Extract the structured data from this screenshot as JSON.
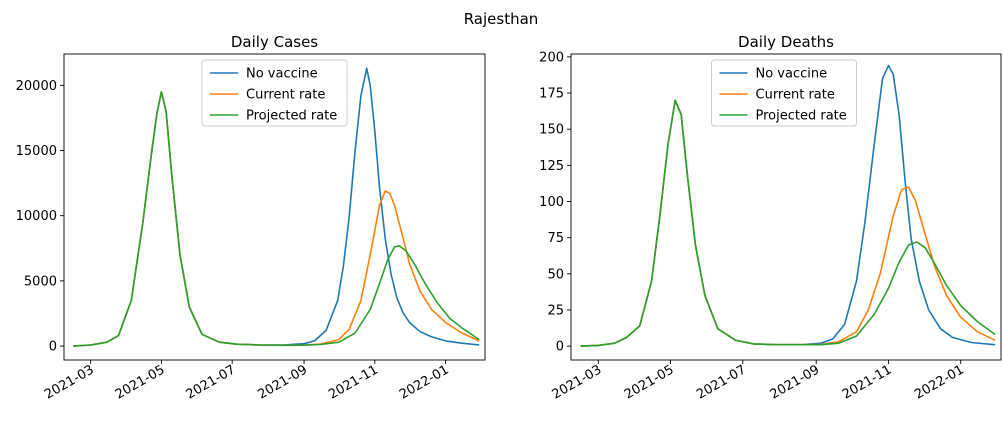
{
  "figure": {
    "suptitle": "Rajesthan"
  },
  "chart_data": [
    {
      "type": "line",
      "title": "Daily Cases",
      "xlabel": "",
      "ylabel": "",
      "xlim": [
        "2021-02-06",
        "2022-02-04"
      ],
      "ylim": [
        -1068,
        22400
      ],
      "yticks": [
        0,
        5000,
        10000,
        15000,
        20000
      ],
      "ytick_labels": [
        "0",
        "5000",
        "10000",
        "15000",
        "20000"
      ],
      "xticks": [
        "2021-03-01",
        "2021-05-01",
        "2021-07-01",
        "2021-09-01",
        "2021-11-01",
        "2022-01-01"
      ],
      "xtick_labels": [
        "2021-03",
        "2021-05",
        "2021-07",
        "2021-09",
        "2021-11",
        "2022-01"
      ],
      "legend": {
        "placement": "upper center",
        "entries": [
          "No vaccine",
          "Current rate",
          "Projected rate"
        ]
      },
      "series": [
        {
          "name": "No vaccine",
          "color": "#1f77b4",
          "x": [
            "2021-02-14",
            "2021-03-01",
            "2021-03-15",
            "2021-03-25",
            "2021-04-05",
            "2021-04-15",
            "2021-04-22",
            "2021-04-27",
            "2021-05-01",
            "2021-05-05",
            "2021-05-10",
            "2021-05-17",
            "2021-05-25",
            "2021-06-05",
            "2021-06-20",
            "2021-07-05",
            "2021-07-25",
            "2021-08-15",
            "2021-09-01",
            "2021-09-10",
            "2021-09-20",
            "2021-09-30",
            "2021-10-05",
            "2021-10-10",
            "2021-10-15",
            "2021-10-20",
            "2021-10-25",
            "2021-10-28",
            "2021-11-01",
            "2021-11-05",
            "2021-11-10",
            "2021-11-15",
            "2021-11-20",
            "2021-11-25",
            "2021-12-01",
            "2021-12-10",
            "2021-12-20",
            "2022-01-01",
            "2022-01-15",
            "2022-01-30"
          ],
          "y": [
            0,
            80,
            300,
            800,
            3500,
            9500,
            14500,
            17800,
            19500,
            18000,
            13000,
            7000,
            3000,
            900,
            300,
            140,
            80,
            90,
            180,
            400,
            1200,
            3500,
            6200,
            10000,
            15000,
            19200,
            21300,
            20000,
            16500,
            12200,
            8200,
            5500,
            3700,
            2600,
            1800,
            1100,
            700,
            400,
            220,
            90
          ]
        },
        {
          "name": "Current rate",
          "color": "#ff7f0e",
          "x": [
            "2021-02-14",
            "2021-03-01",
            "2021-03-15",
            "2021-03-25",
            "2021-04-05",
            "2021-04-15",
            "2021-04-22",
            "2021-04-27",
            "2021-05-01",
            "2021-05-05",
            "2021-05-10",
            "2021-05-17",
            "2021-05-25",
            "2021-06-05",
            "2021-06-20",
            "2021-07-05",
            "2021-07-25",
            "2021-08-15",
            "2021-09-01",
            "2021-09-15",
            "2021-10-01",
            "2021-10-10",
            "2021-10-20",
            "2021-10-28",
            "2021-11-05",
            "2021-11-10",
            "2021-11-14",
            "2021-11-18",
            "2021-11-25",
            "2021-12-01",
            "2021-12-10",
            "2021-12-20",
            "2022-01-01",
            "2022-01-15",
            "2022-01-30"
          ],
          "y": [
            0,
            80,
            300,
            800,
            3500,
            9500,
            14500,
            17800,
            19500,
            18000,
            13000,
            7000,
            3000,
            900,
            300,
            140,
            80,
            70,
            80,
            150,
            500,
            1300,
            3500,
            7000,
            10800,
            11900,
            11700,
            10800,
            8400,
            6300,
            4200,
            2800,
            1800,
            1000,
            400
          ]
        },
        {
          "name": "Projected rate",
          "color": "#2ca02c",
          "x": [
            "2021-02-14",
            "2021-03-01",
            "2021-03-15",
            "2021-03-25",
            "2021-04-05",
            "2021-04-15",
            "2021-04-22",
            "2021-04-27",
            "2021-05-01",
            "2021-05-05",
            "2021-05-10",
            "2021-05-17",
            "2021-05-25",
            "2021-06-05",
            "2021-06-20",
            "2021-07-05",
            "2021-07-25",
            "2021-08-15",
            "2021-09-01",
            "2021-09-15",
            "2021-10-01",
            "2021-10-15",
            "2021-10-28",
            "2021-11-05",
            "2021-11-12",
            "2021-11-18",
            "2021-11-22",
            "2021-11-28",
            "2021-12-05",
            "2021-12-15",
            "2021-12-25",
            "2022-01-05",
            "2022-01-15",
            "2022-01-30"
          ],
          "y": [
            0,
            80,
            300,
            800,
            3500,
            9500,
            14500,
            17800,
            19500,
            18000,
            13000,
            7000,
            3000,
            900,
            300,
            140,
            80,
            60,
            70,
            120,
            300,
            1000,
            2800,
            4800,
            6600,
            7600,
            7700,
            7300,
            6300,
            4700,
            3300,
            2100,
            1400,
            500
          ]
        }
      ]
    },
    {
      "type": "line",
      "title": "Daily Deaths",
      "xlabel": "",
      "ylabel": "",
      "xlim": [
        "2021-02-06",
        "2022-02-04"
      ],
      "ylim": [
        -9.6,
        202
      ],
      "yticks": [
        0,
        25,
        50,
        75,
        100,
        125,
        150,
        175,
        200
      ],
      "ytick_labels": [
        "0",
        "25",
        "50",
        "75",
        "100",
        "125",
        "150",
        "175",
        "200"
      ],
      "xticks": [
        "2021-03-01",
        "2021-05-01",
        "2021-07-01",
        "2021-09-01",
        "2021-11-01",
        "2022-01-01"
      ],
      "xtick_labels": [
        "2021-03",
        "2021-05",
        "2021-07",
        "2021-09",
        "2021-11",
        "2022-01"
      ],
      "legend": {
        "placement": "upper center",
        "entries": [
          "No vaccine",
          "Current rate",
          "Projected rate"
        ]
      },
      "series": [
        {
          "name": "No vaccine",
          "color": "#1f77b4",
          "x": [
            "2021-02-14",
            "2021-03-01",
            "2021-03-15",
            "2021-03-25",
            "2021-04-05",
            "2021-04-15",
            "2021-04-22",
            "2021-04-29",
            "2021-05-05",
            "2021-05-10",
            "2021-05-15",
            "2021-05-22",
            "2021-05-30",
            "2021-06-10",
            "2021-06-25",
            "2021-07-10",
            "2021-07-30",
            "2021-08-20",
            "2021-09-05",
            "2021-09-15",
            "2021-09-25",
            "2021-10-05",
            "2021-10-12",
            "2021-10-20",
            "2021-10-27",
            "2021-11-01",
            "2021-11-05",
            "2021-11-10",
            "2021-11-15",
            "2021-11-20",
            "2021-11-27",
            "2021-12-05",
            "2021-12-15",
            "2021-12-25",
            "2022-01-10",
            "2022-01-30"
          ],
          "y": [
            0,
            0.5,
            2,
            6,
            14,
            45,
            90,
            140,
            170,
            160,
            120,
            70,
            35,
            12,
            4,
            1.5,
            1,
            1,
            2,
            5,
            15,
            45,
            85,
            140,
            185,
            194,
            188,
            160,
            115,
            75,
            45,
            25,
            12,
            6,
            2.5,
            1
          ]
        },
        {
          "name": "Current rate",
          "color": "#ff7f0e",
          "x": [
            "2021-02-14",
            "2021-03-01",
            "2021-03-15",
            "2021-03-25",
            "2021-04-05",
            "2021-04-15",
            "2021-04-22",
            "2021-04-29",
            "2021-05-05",
            "2021-05-10",
            "2021-05-15",
            "2021-05-22",
            "2021-05-30",
            "2021-06-10",
            "2021-06-25",
            "2021-07-10",
            "2021-07-30",
            "2021-08-20",
            "2021-09-05",
            "2021-09-20",
            "2021-10-05",
            "2021-10-15",
            "2021-10-25",
            "2021-11-05",
            "2021-11-12",
            "2021-11-18",
            "2021-11-24",
            "2021-12-01",
            "2021-12-10",
            "2021-12-20",
            "2022-01-01",
            "2022-01-15",
            "2022-01-30"
          ],
          "y": [
            0,
            0.5,
            2,
            6,
            14,
            45,
            90,
            140,
            170,
            160,
            120,
            70,
            35,
            12,
            4,
            1.5,
            1,
            1,
            1.2,
            3,
            10,
            25,
            50,
            90,
            108,
            110,
            100,
            80,
            55,
            35,
            20,
            10,
            4
          ]
        },
        {
          "name": "Projected rate",
          "color": "#2ca02c",
          "x": [
            "2021-02-14",
            "2021-03-01",
            "2021-03-15",
            "2021-03-25",
            "2021-04-05",
            "2021-04-15",
            "2021-04-22",
            "2021-04-29",
            "2021-05-05",
            "2021-05-10",
            "2021-05-15",
            "2021-05-22",
            "2021-05-30",
            "2021-06-10",
            "2021-06-25",
            "2021-07-10",
            "2021-07-30",
            "2021-08-20",
            "2021-09-05",
            "2021-09-20",
            "2021-10-05",
            "2021-10-20",
            "2021-11-01",
            "2021-11-10",
            "2021-11-18",
            "2021-11-25",
            "2021-12-02",
            "2021-12-10",
            "2021-12-20",
            "2022-01-01",
            "2022-01-15",
            "2022-01-30"
          ],
          "y": [
            0,
            0.5,
            2,
            6,
            14,
            45,
            90,
            140,
            170,
            160,
            120,
            70,
            35,
            12,
            4,
            1.5,
            1,
            1,
            1,
            2,
            7,
            22,
            40,
            58,
            70,
            72,
            68,
            57,
            42,
            28,
            17,
            8
          ]
        }
      ]
    }
  ]
}
